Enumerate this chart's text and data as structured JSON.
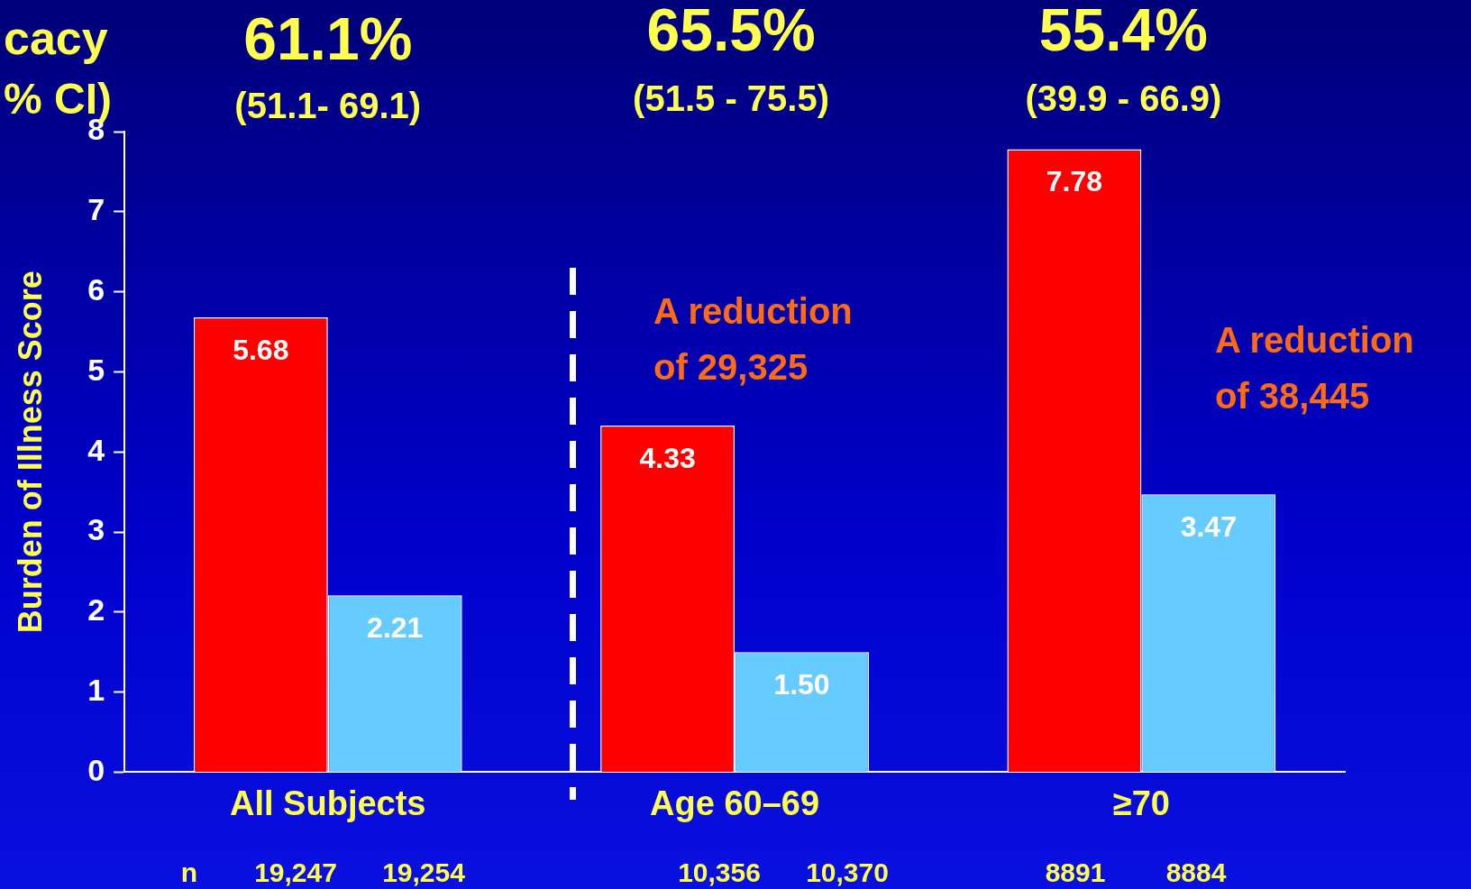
{
  "chart_data": {
    "type": "bar",
    "ylabel": "Burden of Illness Score",
    "categories": [
      "All Subjects",
      "Age 60–69",
      "≥70"
    ],
    "series": [
      {
        "color": "#ff0000",
        "values": [
          5.68,
          4.33,
          7.78
        ],
        "value_labels": [
          "5.68",
          "4.33",
          "7.78"
        ]
      },
      {
        "color": "#66ccff",
        "values": [
          2.21,
          1.5,
          3.47
        ],
        "value_labels": [
          "2.21",
          "1.50",
          "3.47"
        ]
      }
    ],
    "ylim": [
      0,
      8
    ],
    "yticks": [
      0,
      1,
      2,
      3,
      4,
      5,
      6,
      7,
      8
    ],
    "grid": false,
    "legend": false,
    "annotations": [
      "61.1%",
      "(51.1- 69.1)",
      "65.5%",
      "(51.5 - 75.5)",
      "55.4%",
      "(39.9 - 66.9)",
      "A reduction of 29,325",
      "A reduction of 38,445",
      "n",
      "19,247",
      "19,254",
      "10,356",
      "10,370",
      "8891",
      "8884",
      "cacy",
      "% CI)"
    ]
  }
}
